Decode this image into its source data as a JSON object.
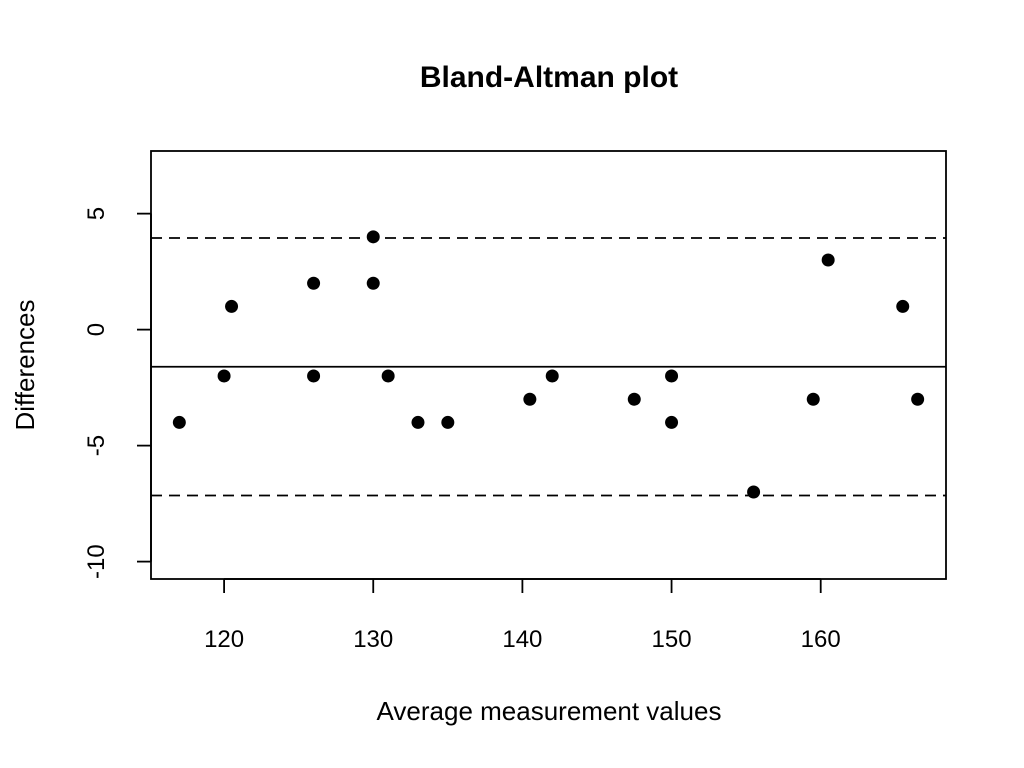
{
  "chart_data": {
    "type": "scatter",
    "title": "Bland-Altman plot",
    "xlabel": "Average measurement values",
    "ylabel": "Differences",
    "xlim": [
      115.1,
      168.4
    ],
    "ylim": [
      -10.75,
      7.7
    ],
    "x_ticks": [
      120,
      130,
      140,
      150,
      160
    ],
    "y_ticks": [
      -10,
      -5,
      0,
      5
    ],
    "grid": false,
    "legend": "none",
    "point_color": "#000000",
    "points": [
      {
        "x": 117,
        "y": -4
      },
      {
        "x": 120,
        "y": -2
      },
      {
        "x": 120.5,
        "y": 1
      },
      {
        "x": 126,
        "y": 2
      },
      {
        "x": 126,
        "y": -2
      },
      {
        "x": 130,
        "y": 4
      },
      {
        "x": 130,
        "y": 2
      },
      {
        "x": 131,
        "y": -2
      },
      {
        "x": 133,
        "y": -4
      },
      {
        "x": 135,
        "y": -4
      },
      {
        "x": 140.5,
        "y": -3
      },
      {
        "x": 142,
        "y": -2
      },
      {
        "x": 147.5,
        "y": -3
      },
      {
        "x": 150,
        "y": -2
      },
      {
        "x": 150,
        "y": -4
      },
      {
        "x": 155.5,
        "y": -7
      },
      {
        "x": 159.5,
        "y": -3
      },
      {
        "x": 160.5,
        "y": 3
      },
      {
        "x": 165.5,
        "y": 1
      },
      {
        "x": 166.5,
        "y": -3
      }
    ],
    "reference_lines": [
      {
        "y": -1.6,
        "style": "solid"
      },
      {
        "y": 3.95,
        "style": "dashed"
      },
      {
        "y": -7.15,
        "style": "dashed"
      }
    ]
  }
}
